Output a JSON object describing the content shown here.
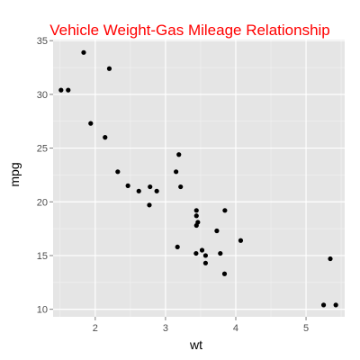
{
  "chart_data": {
    "type": "scatter",
    "title": "Vehicle Weight-Gas Mileage Relationship",
    "xlabel": "wt",
    "ylabel": "mpg",
    "xlim": [
      1.4,
      5.55
    ],
    "ylim": [
      9.3,
      35.1
    ],
    "x_ticks": [
      2,
      3,
      4,
      5
    ],
    "y_ticks": [
      10,
      15,
      20,
      25,
      30,
      35
    ],
    "grid": true,
    "points": [
      {
        "x": 2.62,
        "y": 21.0
      },
      {
        "x": 2.875,
        "y": 21.0
      },
      {
        "x": 2.32,
        "y": 22.8
      },
      {
        "x": 3.215,
        "y": 21.4
      },
      {
        "x": 3.44,
        "y": 18.7
      },
      {
        "x": 3.46,
        "y": 18.1
      },
      {
        "x": 3.57,
        "y": 14.3
      },
      {
        "x": 3.19,
        "y": 24.4
      },
      {
        "x": 3.15,
        "y": 22.8
      },
      {
        "x": 3.44,
        "y": 19.2
      },
      {
        "x": 3.44,
        "y": 17.8
      },
      {
        "x": 4.07,
        "y": 16.4
      },
      {
        "x": 3.73,
        "y": 17.3
      },
      {
        "x": 3.78,
        "y": 15.2
      },
      {
        "x": 5.25,
        "y": 10.4
      },
      {
        "x": 5.424,
        "y": 10.4
      },
      {
        "x": 5.345,
        "y": 14.7
      },
      {
        "x": 2.2,
        "y": 32.4
      },
      {
        "x": 1.615,
        "y": 30.4
      },
      {
        "x": 1.835,
        "y": 33.9
      },
      {
        "x": 2.465,
        "y": 21.5
      },
      {
        "x": 3.52,
        "y": 15.5
      },
      {
        "x": 3.435,
        "y": 15.2
      },
      {
        "x": 3.84,
        "y": 13.3
      },
      {
        "x": 3.845,
        "y": 19.2
      },
      {
        "x": 1.935,
        "y": 27.3
      },
      {
        "x": 2.14,
        "y": 26.0
      },
      {
        "x": 1.513,
        "y": 30.4
      },
      {
        "x": 3.17,
        "y": 15.8
      },
      {
        "x": 2.77,
        "y": 19.7
      },
      {
        "x": 3.57,
        "y": 15.0
      },
      {
        "x": 2.78,
        "y": 21.4
      }
    ]
  },
  "colors": {
    "title": "#ff0000",
    "panel_background": "#e5e5e5",
    "grid_major": "#ffffff",
    "grid_minor": "#f2f2f2",
    "point": "#000000"
  }
}
